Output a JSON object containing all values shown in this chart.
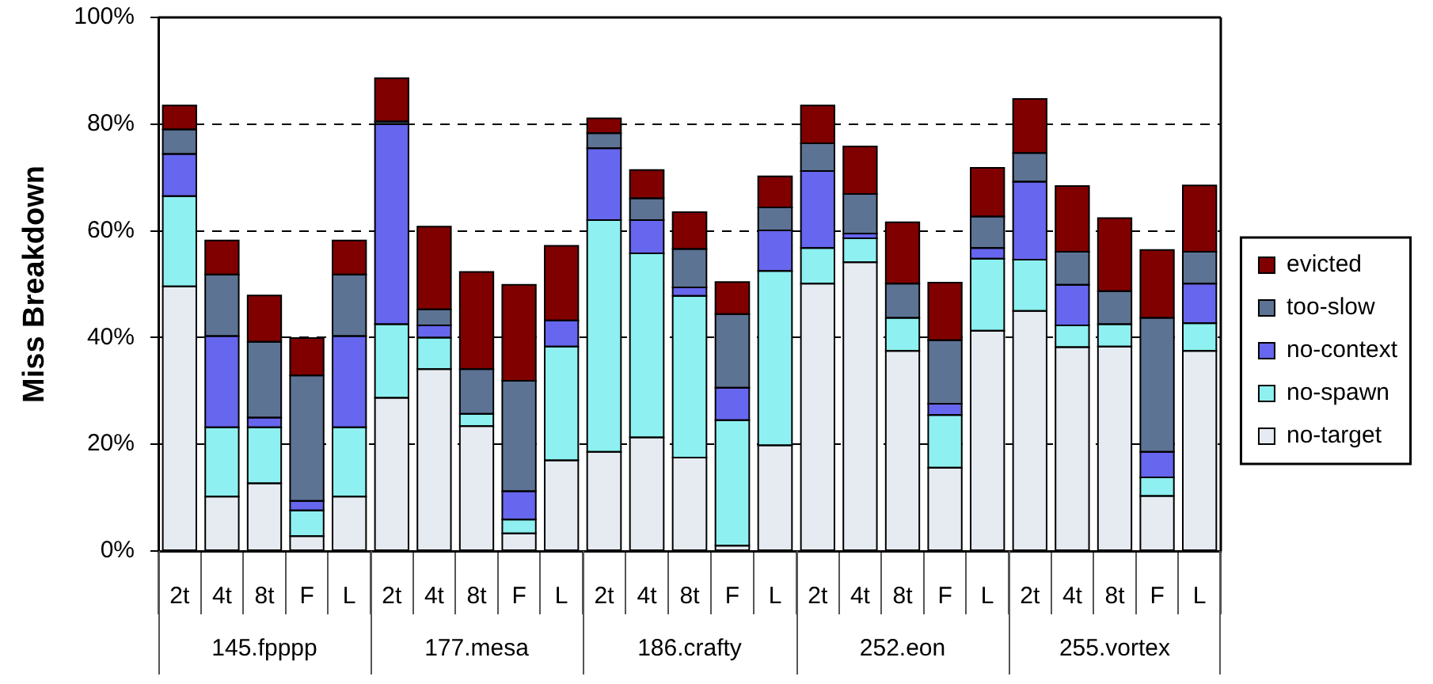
{
  "chart_data": [
    {
      "type": "bar",
      "stacked": true,
      "categories": [
        "2t",
        "4t",
        "8t",
        "F",
        "L"
      ],
      "xlabel": "145.fpppp",
      "ylabel": "Miss Breakdown",
      "ylim": [
        0,
        100
      ],
      "yticks": [
        {
          "value": 0,
          "label": "0%"
        },
        {
          "value": 20,
          "label": "20%"
        },
        {
          "value": 40,
          "label": "40%"
        },
        {
          "value": 60,
          "label": "60%"
        },
        {
          "value": 80,
          "label": "80%"
        },
        {
          "value": 100,
          "label": "100%"
        }
      ],
      "grid": "y",
      "series": [
        {
          "color": "#e6ebf2",
          "values": [
            49.6,
            10.2,
            12.7,
            2.8,
            10.2
          ]
        },
        {
          "color": "#8ef0f0",
          "values": [
            16.9,
            13.0,
            10.5,
            4.8,
            13.0
          ]
        },
        {
          "color": "#6666ee",
          "values": [
            7.9,
            17.1,
            1.8,
            1.8,
            17.1
          ]
        },
        {
          "color": "#5d7394",
          "values": [
            4.6,
            11.5,
            14.2,
            23.5,
            11.5
          ]
        },
        {
          "color": "#800000",
          "values": [
            4.5,
            6.4,
            8.7,
            7.0,
            6.4
          ]
        }
      ]
    },
    {
      "type": "bar",
      "stacked": true,
      "categories": [
        "2t",
        "4t",
        "8t",
        "F",
        "L"
      ],
      "xlabel": "177.mesa",
      "ylim": [
        0,
        100
      ],
      "yticks": [
        {
          "value": 0,
          "label": null
        },
        {
          "value": 20,
          "label": null
        },
        {
          "value": 40,
          "label": null
        },
        {
          "value": 60,
          "label": null
        },
        {
          "value": 80,
          "label": null
        },
        {
          "value": 100,
          "label": null
        }
      ],
      "grid": "y",
      "tick_labels": "x",
      "series": [
        {
          "color": "#e6ebf2",
          "values": [
            28.7,
            34.1,
            23.4,
            3.3,
            17.0
          ]
        },
        {
          "color": "#8ef0f0",
          "values": [
            13.8,
            5.9,
            2.3,
            2.6,
            21.3
          ]
        },
        {
          "color": "#6666ee",
          "values": [
            37.5,
            2.3,
            0,
            5.3,
            4.9
          ]
        },
        {
          "color": "#5d7394",
          "values": [
            0.5,
            3.0,
            8.4,
            20.7,
            0
          ]
        },
        {
          "color": "#800000",
          "values": [
            8.1,
            15.5,
            18.2,
            18.0,
            14.0
          ]
        }
      ]
    },
    {
      "type": "bar",
      "stacked": true,
      "categories": [
        "2t",
        "4t",
        "8t",
        "F",
        "L"
      ],
      "xlabel": "186.crafty",
      "ylim": [
        0,
        100
      ],
      "yticks": [
        {
          "value": 0,
          "label": null
        },
        {
          "value": 20,
          "label": null
        },
        {
          "value": 40,
          "label": null
        },
        {
          "value": 60,
          "label": null
        },
        {
          "value": 80,
          "label": null
        },
        {
          "value": 100,
          "label": null
        }
      ],
      "grid": "y",
      "tick_labels": "x",
      "series": [
        {
          "color": "#e6ebf2",
          "values": [
            18.6,
            21.3,
            17.5,
            1.0,
            19.8
          ]
        },
        {
          "color": "#8ef0f0",
          "values": [
            43.4,
            34.5,
            30.3,
            23.5,
            32.7
          ]
        },
        {
          "color": "#6666ee",
          "values": [
            13.5,
            6.2,
            1.6,
            6.1,
            7.6
          ]
        },
        {
          "color": "#5d7394",
          "values": [
            2.8,
            4.1,
            7.2,
            13.8,
            4.3
          ]
        },
        {
          "color": "#800000",
          "values": [
            2.8,
            5.3,
            6.9,
            6.0,
            5.8
          ]
        }
      ]
    },
    {
      "type": "bar",
      "stacked": true,
      "categories": [
        "2t",
        "4t",
        "8t",
        "F",
        "L"
      ],
      "xlabel": "252.eon",
      "ylim": [
        0,
        100
      ],
      "yticks": [
        {
          "value": 0,
          "label": null
        },
        {
          "value": 20,
          "label": null
        },
        {
          "value": 40,
          "label": null
        },
        {
          "value": 60,
          "label": null
        },
        {
          "value": 80,
          "label": null
        },
        {
          "value": 100,
          "label": null
        }
      ],
      "grid": "y",
      "tick_labels": "x",
      "series": [
        {
          "color": "#e6ebf2",
          "values": [
            50.1,
            54.1,
            37.5,
            15.6,
            41.3
          ]
        },
        {
          "color": "#8ef0f0",
          "values": [
            6.7,
            4.5,
            6.2,
            9.9,
            13.5
          ]
        },
        {
          "color": "#6666ee",
          "values": [
            14.4,
            0.9,
            0,
            2.1,
            2.0
          ]
        },
        {
          "color": "#5d7394",
          "values": [
            5.2,
            7.4,
            6.4,
            11.9,
            5.9
          ]
        },
        {
          "color": "#800000",
          "values": [
            7.1,
            8.9,
            11.5,
            10.8,
            9.1
          ]
        }
      ]
    },
    {
      "type": "bar",
      "stacked": true,
      "categories": [
        "2t",
        "4t",
        "8t",
        "F",
        "L"
      ],
      "xlabel": "255.vortex",
      "ylim": [
        0,
        100
      ],
      "yticks": [
        {
          "value": 0,
          "label": null
        },
        {
          "value": 20,
          "label": null
        },
        {
          "value": 40,
          "label": null
        },
        {
          "value": 60,
          "label": null
        },
        {
          "value": 80,
          "label": null
        },
        {
          "value": 100,
          "label": null
        }
      ],
      "grid": "y",
      "tick_labels": "x",
      "legend": "right",
      "series": [
        {
          "name": "no-target",
          "color": "#e6ebf2",
          "values": [
            45.0,
            38.2,
            38.3,
            10.3,
            37.5
          ]
        },
        {
          "name": "no-spawn",
          "color": "#8ef0f0",
          "values": [
            9.6,
            4.1,
            4.2,
            3.5,
            5.2
          ]
        },
        {
          "name": "no-context",
          "color": "#6666ee",
          "values": [
            14.6,
            7.6,
            0,
            4.8,
            7.4
          ]
        },
        {
          "name": "too-slow",
          "color": "#5d7394",
          "values": [
            5.4,
            6.2,
            6.2,
            25.1,
            6.0
          ]
        },
        {
          "name": "evicted",
          "color": "#800000",
          "values": [
            10.1,
            12.3,
            13.7,
            12.7,
            12.4
          ]
        }
      ]
    }
  ]
}
